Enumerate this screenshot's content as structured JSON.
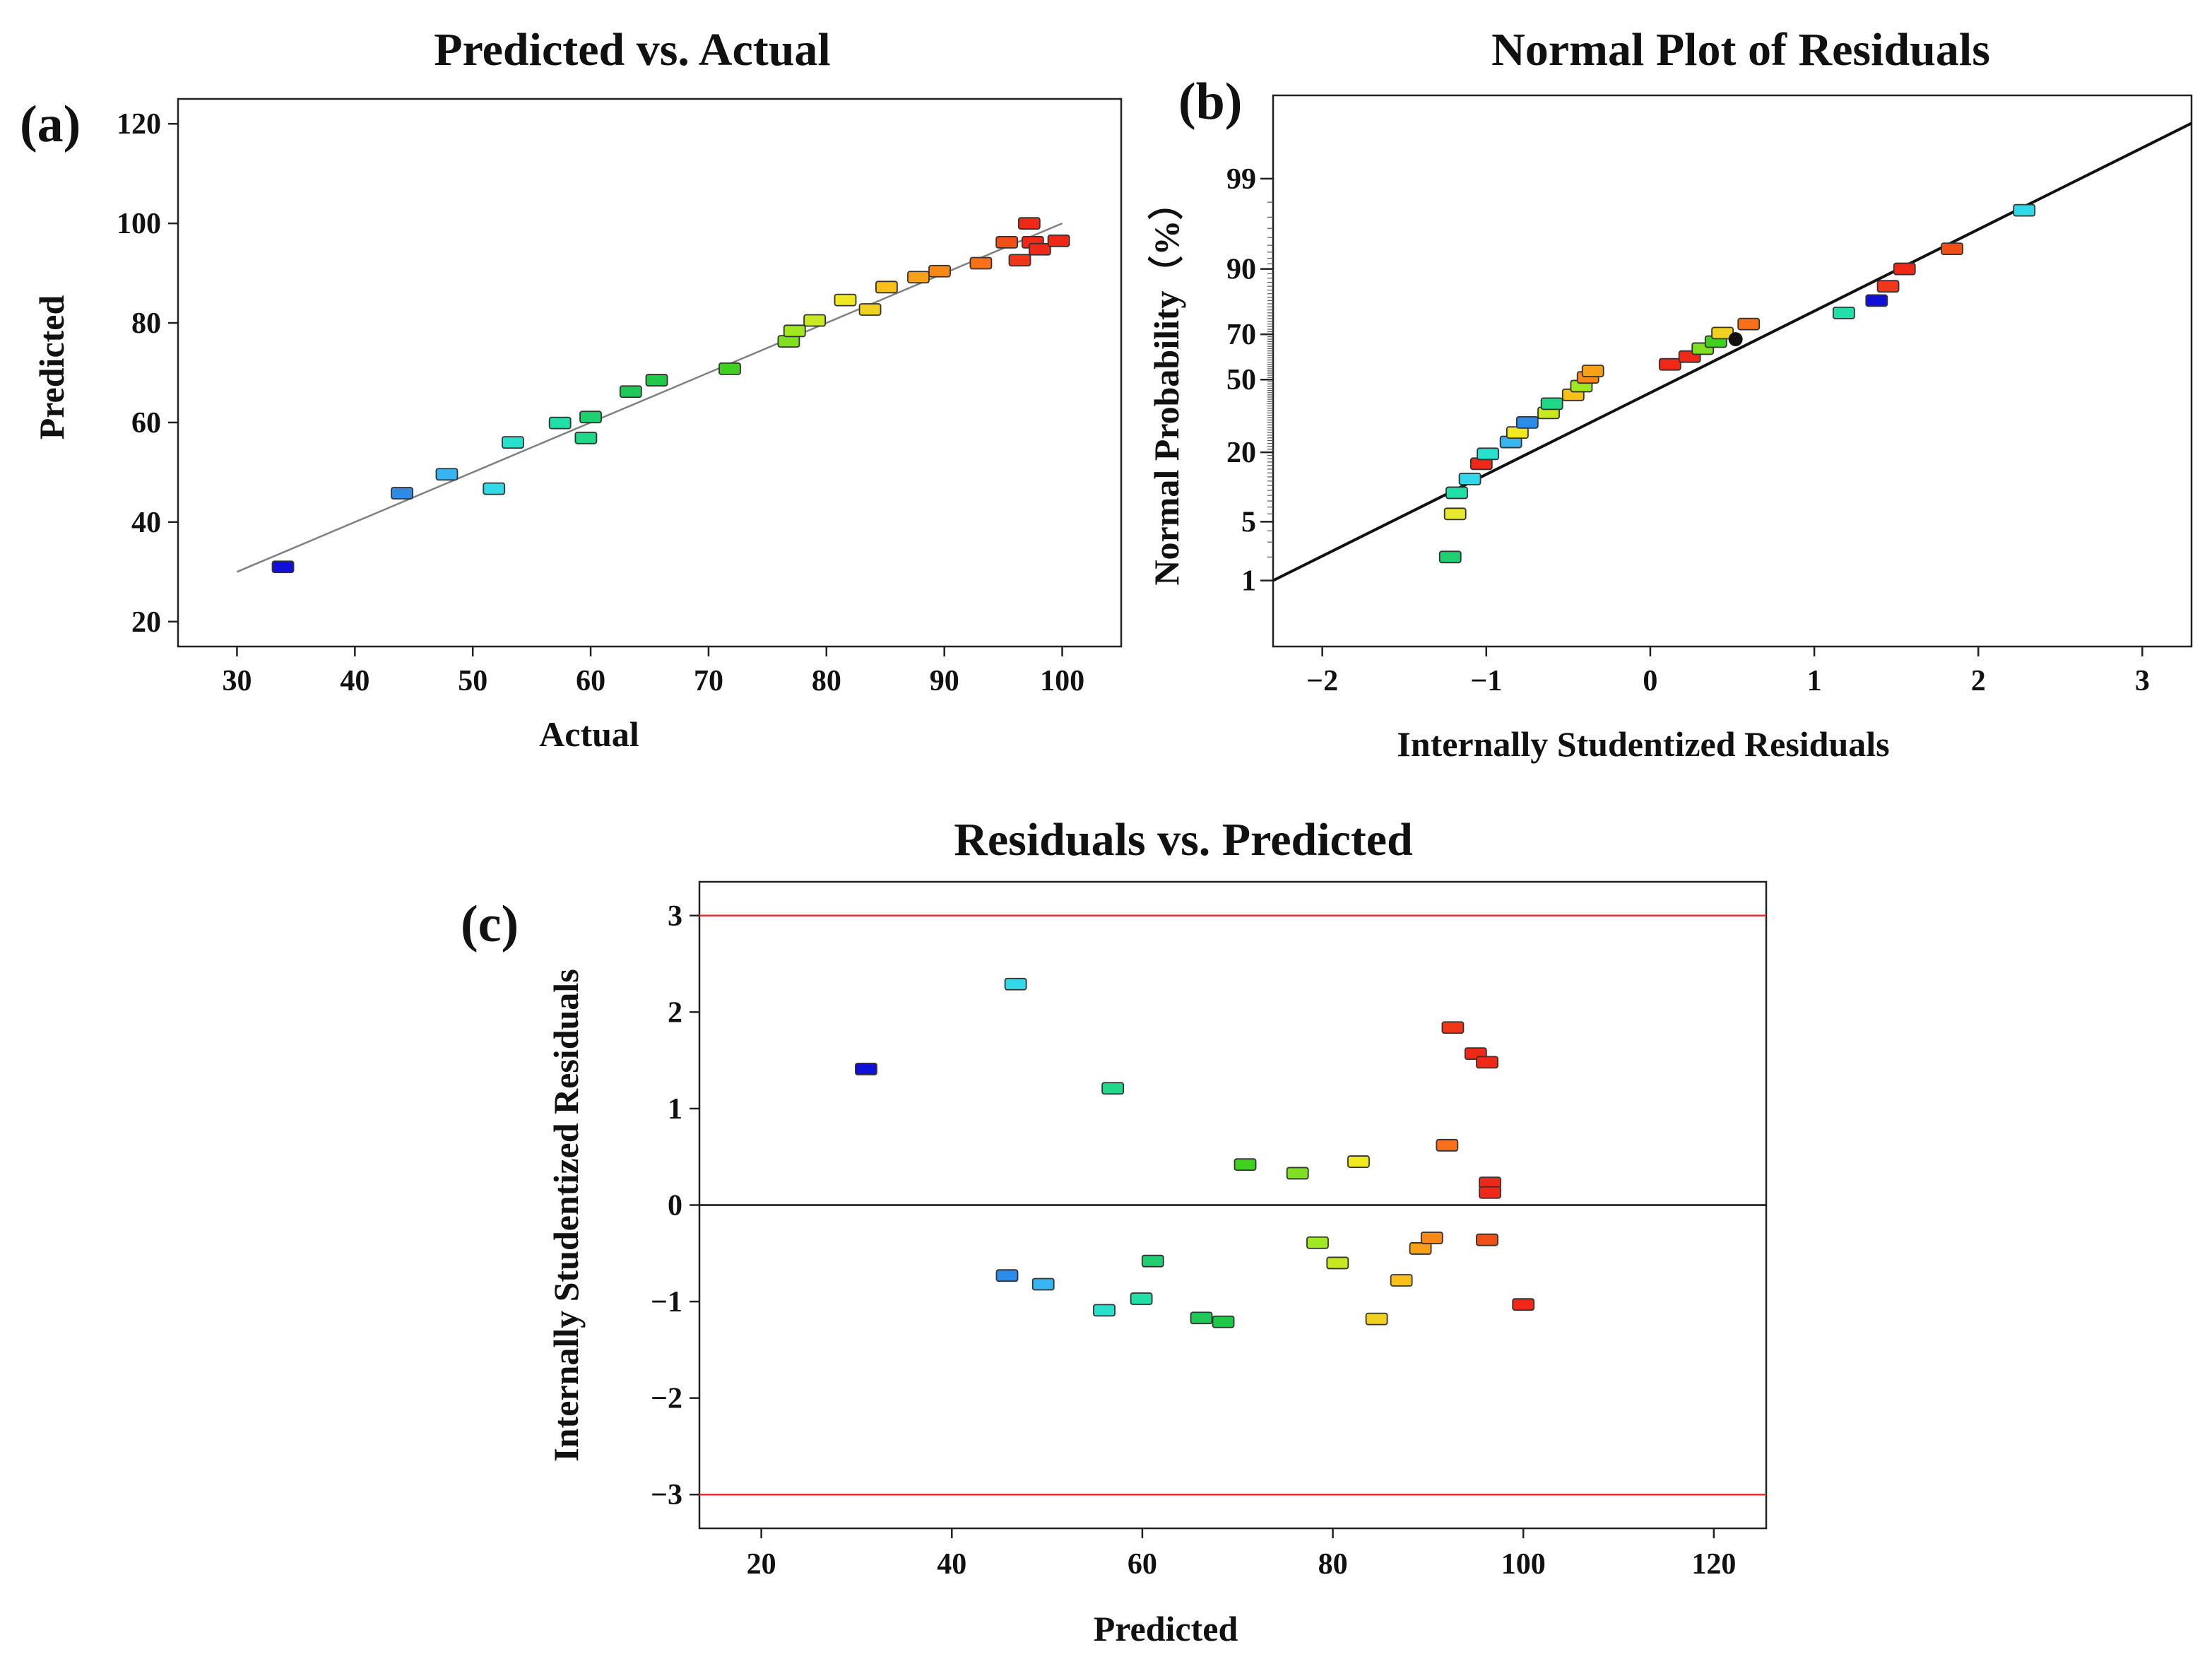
{
  "chart_data": [
    {
      "id": "a",
      "type": "scatter",
      "panel_label": "(a)",
      "title": "Predicted vs. Actual",
      "xlabel": "Actual",
      "ylabel": "Predicted",
      "xlim": [
        25,
        105
      ],
      "ylim": [
        15,
        125
      ],
      "xticks": [
        30,
        40,
        50,
        60,
        70,
        80,
        90,
        100
      ],
      "yticks": [
        20,
        40,
        60,
        80,
        100,
        120
      ],
      "fit_line": {
        "x": [
          30,
          100
        ],
        "y": [
          30,
          100
        ],
        "color": "#808080"
      },
      "points": [
        {
          "x": 33.9,
          "y": 31.0,
          "color": "#1010d8"
        },
        {
          "x": 44.0,
          "y": 45.8,
          "color": "#2c8ce8"
        },
        {
          "x": 47.8,
          "y": 49.6,
          "color": "#38b4f0"
        },
        {
          "x": 51.8,
          "y": 46.7,
          "color": "#30d8e8"
        },
        {
          "x": 53.4,
          "y": 56.0,
          "color": "#28e0cc"
        },
        {
          "x": 57.4,
          "y": 59.9,
          "color": "#20e0a8"
        },
        {
          "x": 59.6,
          "y": 56.9,
          "color": "#20d888"
        },
        {
          "x": 60.0,
          "y": 61.1,
          "color": "#20d070"
        },
        {
          "x": 63.4,
          "y": 66.2,
          "color": "#20c858"
        },
        {
          "x": 65.6,
          "y": 68.5,
          "color": "#20c848"
        },
        {
          "x": 71.8,
          "y": 70.8,
          "color": "#40d020"
        },
        {
          "x": 76.8,
          "y": 76.3,
          "color": "#7ee020"
        },
        {
          "x": 77.3,
          "y": 78.4,
          "color": "#a0e820"
        },
        {
          "x": 79.0,
          "y": 80.5,
          "color": "#c8e820"
        },
        {
          "x": 81.6,
          "y": 84.6,
          "color": "#f0e820"
        },
        {
          "x": 83.7,
          "y": 82.7,
          "color": "#f0d020"
        },
        {
          "x": 85.1,
          "y": 87.2,
          "color": "#f8c018"
        },
        {
          "x": 87.8,
          "y": 89.2,
          "color": "#f8a018"
        },
        {
          "x": 89.6,
          "y": 90.4,
          "color": "#f88818"
        },
        {
          "x": 93.1,
          "y": 92.0,
          "color": "#f87018"
        },
        {
          "x": 95.3,
          "y": 96.2,
          "color": "#f05018"
        },
        {
          "x": 96.4,
          "y": 92.6,
          "color": "#f03818"
        },
        {
          "x": 97.2,
          "y": 100.0,
          "color": "#f02818"
        },
        {
          "x": 97.5,
          "y": 96.2,
          "color": "#f02818"
        },
        {
          "x": 98.1,
          "y": 94.8,
          "color": "#f02818"
        },
        {
          "x": 99.7,
          "y": 96.5,
          "color": "#f02818"
        }
      ]
    },
    {
      "id": "b",
      "type": "scatter",
      "panel_label": "(b)",
      "title": "Normal Plot of Residuals",
      "xlabel": "Internally  Studentized Residuals",
      "ylabel": "Normal Probability（%）",
      "xlim": [
        -2.3,
        3.3
      ],
      "ylim_percent": [
        0.1,
        99.95
      ],
      "xticks": [
        -2,
        -1,
        0,
        1,
        2,
        3
      ],
      "xtick_labels": [
        "−2",
        "−1",
        "0",
        "1",
        "2",
        "3"
      ],
      "yticks": [
        1,
        5,
        20,
        50,
        70,
        90,
        99
      ],
      "fit_line": {
        "x": [
          -2.3,
          3.3
        ],
        "p": [
          1.0,
          99.85
        ],
        "color": "#111111"
      },
      "points": [
        {
          "x": -1.22,
          "p": 2.0,
          "color": "#20d070"
        },
        {
          "x": -1.19,
          "p": 6.0,
          "color": "#e8e830"
        },
        {
          "x": -1.18,
          "p": 9.5,
          "color": "#20e0a8"
        },
        {
          "x": -1.1,
          "p": 12.5,
          "color": "#30d8e8"
        },
        {
          "x": -1.03,
          "p": 16.5,
          "color": "#f02818"
        },
        {
          "x": -0.99,
          "p": 19.5,
          "color": "#28e0cc"
        },
        {
          "x": -0.85,
          "p": 23.5,
          "color": "#38b4f0"
        },
        {
          "x": -0.81,
          "p": 27.0,
          "color": "#f0e820"
        },
        {
          "x": -0.75,
          "p": 31.0,
          "color": "#2c8ce8"
        },
        {
          "x": -0.62,
          "p": 35.0,
          "color": "#c8e820"
        },
        {
          "x": -0.6,
          "p": 39.0,
          "color": "#20d888"
        },
        {
          "x": -0.47,
          "p": 43.0,
          "color": "#f8c018"
        },
        {
          "x": -0.42,
          "p": 47.0,
          "color": "#a0e820"
        },
        {
          "x": -0.38,
          "p": 51.0,
          "color": "#f88818"
        },
        {
          "x": -0.35,
          "p": 54.0,
          "color": "#f8a018"
        },
        {
          "x": 0.12,
          "p": 57.0,
          "color": "#f02818"
        },
        {
          "x": 0.24,
          "p": 60.5,
          "color": "#f02818"
        },
        {
          "x": 0.32,
          "p": 64.0,
          "color": "#7ee020"
        },
        {
          "x": 0.4,
          "p": 67.0,
          "color": "#40d020"
        },
        {
          "x": 0.44,
          "p": 70.5,
          "color": "#f0d020"
        },
        {
          "x": 0.52,
          "p": 68.0,
          "color": "#111111"
        },
        {
          "x": 0.6,
          "p": 74.0,
          "color": "#f87018"
        },
        {
          "x": 1.18,
          "p": 78.0,
          "color": "#20e0a8"
        },
        {
          "x": 1.38,
          "p": 82.0,
          "color": "#1010d8"
        },
        {
          "x": 1.45,
          "p": 86.0,
          "color": "#f03818"
        },
        {
          "x": 1.55,
          "p": 90.0,
          "color": "#f02818"
        },
        {
          "x": 1.84,
          "p": 93.5,
          "color": "#f05018"
        },
        {
          "x": 2.28,
          "p": 97.5,
          "color": "#30d8e8"
        }
      ]
    },
    {
      "id": "c",
      "type": "scatter",
      "panel_label": "(c)",
      "title": "Residuals vs. Predicted",
      "xlabel": "Predicted",
      "ylabel": "Internally  Studentized Residuals",
      "xlim": [
        13.5,
        125.5
      ],
      "ylim": [
        -3.35,
        3.35
      ],
      "xticks": [
        20,
        40,
        60,
        80,
        100,
        120
      ],
      "yticks": [
        -3,
        -2,
        -1,
        0,
        1,
        2,
        3
      ],
      "ytick_labels": [
        "−3",
        "−2",
        "−1",
        "0",
        "1",
        "2",
        "3"
      ],
      "limit_lines": [
        3,
        -3
      ],
      "limit_color": "#e83030",
      "zero_line_color": "#111111",
      "points": [
        {
          "x": 31.0,
          "y": 1.41,
          "color": "#1010d8"
        },
        {
          "x": 45.8,
          "y": -0.73,
          "color": "#2c8ce8"
        },
        {
          "x": 46.7,
          "y": 2.29,
          "color": "#30d8e8"
        },
        {
          "x": 49.6,
          "y": -0.82,
          "color": "#38b4f0"
        },
        {
          "x": 56.0,
          "y": -1.09,
          "color": "#28e0cc"
        },
        {
          "x": 56.9,
          "y": 1.21,
          "color": "#20d888"
        },
        {
          "x": 59.9,
          "y": -0.97,
          "color": "#20e0a8"
        },
        {
          "x": 61.1,
          "y": -0.58,
          "color": "#20d070"
        },
        {
          "x": 66.2,
          "y": -1.17,
          "color": "#20c858"
        },
        {
          "x": 68.5,
          "y": -1.21,
          "color": "#20c848"
        },
        {
          "x": 70.8,
          "y": 0.42,
          "color": "#40d020"
        },
        {
          "x": 76.3,
          "y": 0.33,
          "color": "#7ee020"
        },
        {
          "x": 78.4,
          "y": -0.39,
          "color": "#a0e820"
        },
        {
          "x": 80.5,
          "y": -0.6,
          "color": "#c8e820"
        },
        {
          "x": 82.7,
          "y": 0.45,
          "color": "#f0e820"
        },
        {
          "x": 84.6,
          "y": -1.18,
          "color": "#f0d020"
        },
        {
          "x": 87.2,
          "y": -0.78,
          "color": "#f8c018"
        },
        {
          "x": 89.2,
          "y": -0.45,
          "color": "#f8a018"
        },
        {
          "x": 90.4,
          "y": -0.34,
          "color": "#f88818"
        },
        {
          "x": 92.0,
          "y": 0.62,
          "color": "#f87018"
        },
        {
          "x": 92.6,
          "y": 1.84,
          "color": "#f03818"
        },
        {
          "x": 95.0,
          "y": 1.57,
          "color": "#f02818"
        },
        {
          "x": 96.2,
          "y": 1.48,
          "color": "#f02818"
        },
        {
          "x": 96.5,
          "y": 0.23,
          "color": "#f02818"
        },
        {
          "x": 96.5,
          "y": 0.13,
          "color": "#f02818"
        },
        {
          "x": 96.2,
          "y": -0.36,
          "color": "#f05018"
        },
        {
          "x": 100.0,
          "y": -1.03,
          "color": "#f02818"
        }
      ]
    }
  ]
}
